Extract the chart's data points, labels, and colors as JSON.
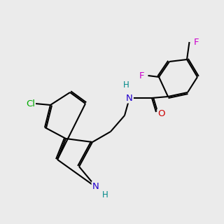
{
  "bg_color": "#ebebeb",
  "atom_colors": {
    "C": "#000000",
    "N_amide": "#2200cc",
    "N_indole": "#2200cc",
    "O": "#cc0000",
    "F": "#cc00cc",
    "Cl": "#00aa00",
    "H": "#008888"
  },
  "bond_color": "#000000",
  "bond_width": 1.5,
  "font_size": 8.5,
  "title": ""
}
